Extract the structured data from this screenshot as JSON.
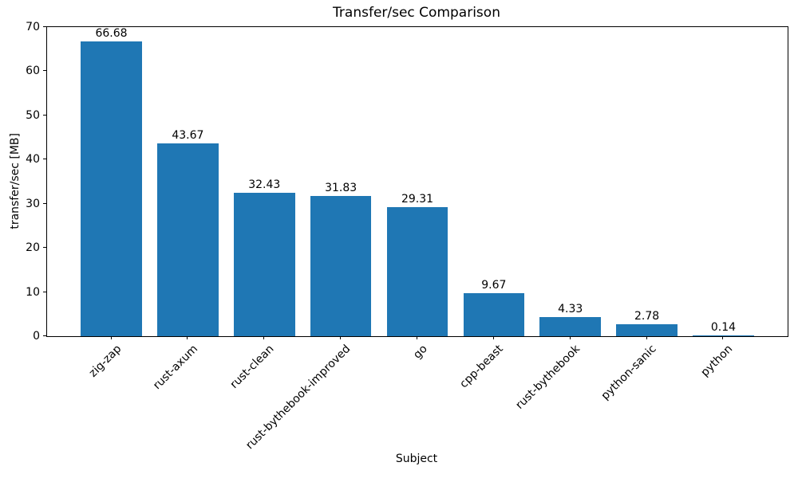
{
  "chart_data": {
    "type": "bar",
    "title": "Transfer/sec Comparison",
    "xlabel": "Subject",
    "ylabel": "transfer/sec [MB]",
    "categories": [
      "zig-zap",
      "rust-axum",
      "rust-clean",
      "rust-bythebook-improved",
      "go",
      "cpp-beast",
      "rust-bythebook",
      "python-sanic",
      "python"
    ],
    "values": [
      66.68,
      43.67,
      32.43,
      31.83,
      29.31,
      9.67,
      4.33,
      2.78,
      0.14
    ],
    "value_labels": [
      "66.68",
      "43.67",
      "32.43",
      "31.83",
      "29.31",
      "9.67",
      "4.33",
      "2.78",
      "0.14"
    ],
    "ylim": [
      0,
      70
    ],
    "yticks": [
      0,
      10,
      20,
      30,
      40,
      50,
      60,
      70
    ],
    "bar_color": "#1f77b4",
    "grid": false,
    "x_tick_rotation_deg": 45,
    "legend_position": "none"
  }
}
